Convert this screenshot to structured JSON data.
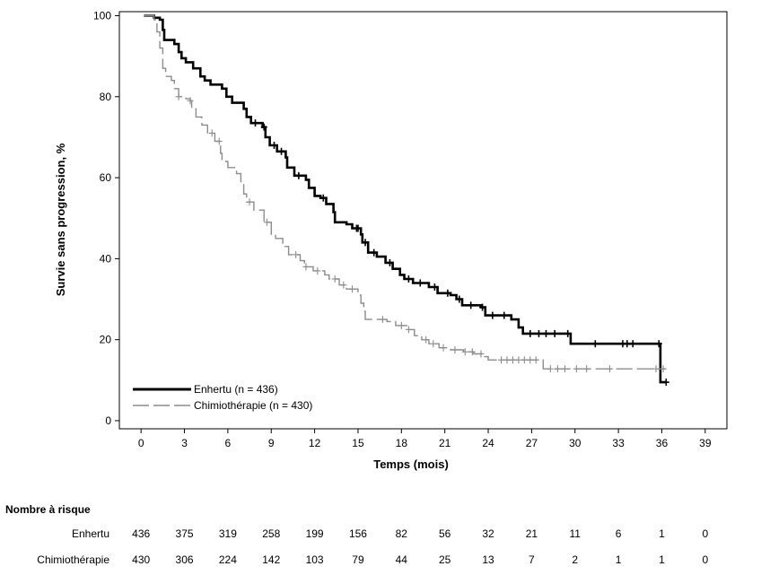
{
  "chart_data": {
    "type": "line",
    "title": "",
    "xlabel": "Temps (mois)",
    "ylabel": "Survie sans progression, %",
    "xlim": [
      -1.5,
      40.5
    ],
    "ylim": [
      -2,
      101
    ],
    "x_ticks": [
      "0",
      "3",
      "6",
      "9",
      "12",
      "15",
      "18",
      "21",
      "24",
      "27",
      "30",
      "33",
      "36",
      "39"
    ],
    "y_ticks": [
      "0",
      "20",
      "40",
      "60",
      "80",
      "100"
    ],
    "grid": false,
    "legend_position": "bottom-left",
    "series": [
      {
        "name": "Enhertu (n = 436)",
        "color": "#000000",
        "style": "solid",
        "points": [
          [
            0.2,
            100
          ],
          [
            0.9,
            99.5
          ],
          [
            1.3,
            99
          ],
          [
            1.5,
            96.5
          ],
          [
            1.6,
            94
          ],
          [
            2.3,
            93
          ],
          [
            2.6,
            91
          ],
          [
            2.8,
            89.5
          ],
          [
            3.1,
            88.5
          ],
          [
            3.6,
            87
          ],
          [
            4.1,
            85
          ],
          [
            4.4,
            84
          ],
          [
            4.8,
            83
          ],
          [
            5.6,
            82
          ],
          [
            5.9,
            80
          ],
          [
            6.3,
            78.5
          ],
          [
            7.1,
            77
          ],
          [
            7.3,
            75
          ],
          [
            7.6,
            73.5
          ],
          [
            8.4,
            72.5
          ],
          [
            8.6,
            70
          ],
          [
            8.9,
            68
          ],
          [
            9.4,
            66.5
          ],
          [
            10.0,
            65
          ],
          [
            10.1,
            62.5
          ],
          [
            10.6,
            60.5
          ],
          [
            11.4,
            59.5
          ],
          [
            11.6,
            57.5
          ],
          [
            12.0,
            55.5
          ],
          [
            12.4,
            55
          ],
          [
            12.8,
            53.5
          ],
          [
            13.3,
            51.5
          ],
          [
            13.4,
            49
          ],
          [
            14.2,
            48.5
          ],
          [
            14.6,
            47.5
          ],
          [
            15.2,
            46
          ],
          [
            15.3,
            44
          ],
          [
            15.7,
            41.5
          ],
          [
            16.3,
            40.5
          ],
          [
            16.9,
            39
          ],
          [
            17.4,
            37.5
          ],
          [
            17.9,
            36
          ],
          [
            18.2,
            35
          ],
          [
            18.8,
            34
          ],
          [
            19.9,
            33
          ],
          [
            20.5,
            31.5
          ],
          [
            21.4,
            31
          ],
          [
            21.8,
            30
          ],
          [
            22.2,
            28.5
          ],
          [
            23.5,
            28
          ],
          [
            23.8,
            26
          ],
          [
            25.6,
            25
          ],
          [
            26.1,
            23
          ],
          [
            26.4,
            21.5
          ],
          [
            29.7,
            21.5
          ],
          [
            29.7,
            19
          ],
          [
            35.9,
            19
          ],
          [
            35.9,
            9.5
          ],
          [
            36.3,
            9.5
          ]
        ],
        "censor_x": [
          7.9,
          8.5,
          9.2,
          9.7,
          10.9,
          12.6,
          14.9,
          15.0,
          15.5,
          16.1,
          17.2,
          18.5,
          19.3,
          20.3,
          21.2,
          22.0,
          22.8,
          23.6,
          24.3,
          25.1,
          26.9,
          27.5,
          28.0,
          28.6,
          29.5,
          31.4,
          33.3,
          33.6,
          34.0,
          35.8,
          36.3
        ]
      },
      {
        "name": "Chimiothérapie (n = 430)",
        "color": "#8c8c8c",
        "style": "dashed",
        "points": [
          [
            0.2,
            100
          ],
          [
            0.9,
            99
          ],
          [
            1.1,
            96
          ],
          [
            1.3,
            92
          ],
          [
            1.5,
            87
          ],
          [
            1.7,
            85
          ],
          [
            2.1,
            84
          ],
          [
            2.3,
            82
          ],
          [
            2.6,
            80
          ],
          [
            3.1,
            79.5
          ],
          [
            3.4,
            79
          ],
          [
            3.5,
            77
          ],
          [
            3.8,
            75
          ],
          [
            4.2,
            73
          ],
          [
            4.6,
            71
          ],
          [
            5.1,
            69
          ],
          [
            5.5,
            66
          ],
          [
            5.6,
            64
          ],
          [
            6.0,
            62.5
          ],
          [
            6.6,
            61
          ],
          [
            6.9,
            59
          ],
          [
            7.1,
            56
          ],
          [
            7.3,
            54
          ],
          [
            7.8,
            52
          ],
          [
            8.5,
            49
          ],
          [
            9.0,
            46
          ],
          [
            9.3,
            45
          ],
          [
            9.8,
            43
          ],
          [
            10.2,
            41
          ],
          [
            11.0,
            39.5
          ],
          [
            11.3,
            38
          ],
          [
            11.9,
            37
          ],
          [
            12.7,
            36
          ],
          [
            13.0,
            35
          ],
          [
            13.7,
            33.5
          ],
          [
            14.2,
            32.5
          ],
          [
            15.0,
            31
          ],
          [
            15.2,
            29
          ],
          [
            15.4,
            27
          ],
          [
            15.5,
            25
          ],
          [
            16.2,
            25
          ],
          [
            17.0,
            24.5
          ],
          [
            17.6,
            23.5
          ],
          [
            18.5,
            22.5
          ],
          [
            18.9,
            21
          ],
          [
            19.4,
            20
          ],
          [
            19.9,
            19
          ],
          [
            20.6,
            18
          ],
          [
            21.4,
            17.5
          ],
          [
            22.3,
            17
          ],
          [
            23.0,
            16.5
          ],
          [
            23.6,
            15.8
          ],
          [
            24.0,
            15
          ],
          [
            27.8,
            15
          ],
          [
            27.8,
            12.8
          ],
          [
            30.2,
            12.8
          ],
          [
            36.3,
            12.8
          ]
        ],
        "censor_x": [
          2.6,
          3.4,
          4.9,
          5.4,
          7.5,
          8.7,
          10.7,
          11.4,
          12.2,
          13.4,
          14.0,
          14.6,
          16.7,
          18.0,
          18.5,
          19.7,
          20.2,
          20.9,
          21.7,
          22.4,
          22.9,
          23.5,
          24.9,
          25.3,
          25.7,
          26.1,
          26.5,
          26.9,
          27.3,
          28.3,
          28.8,
          29.3,
          30.1,
          30.8,
          32.4,
          35.6,
          36.1
        ]
      }
    ]
  },
  "risk_table": {
    "title": "Nombre à risque",
    "rows": [
      {
        "label": "Enhertu",
        "values": [
          "436",
          "375",
          "319",
          "258",
          "199",
          "156",
          "82",
          "56",
          "32",
          "21",
          "11",
          "6",
          "1",
          "0"
        ]
      },
      {
        "label": "Chimiothérapie",
        "values": [
          "430",
          "306",
          "224",
          "142",
          "103",
          "79",
          "44",
          "25",
          "13",
          "7",
          "2",
          "1",
          "1",
          "0"
        ]
      }
    ]
  }
}
